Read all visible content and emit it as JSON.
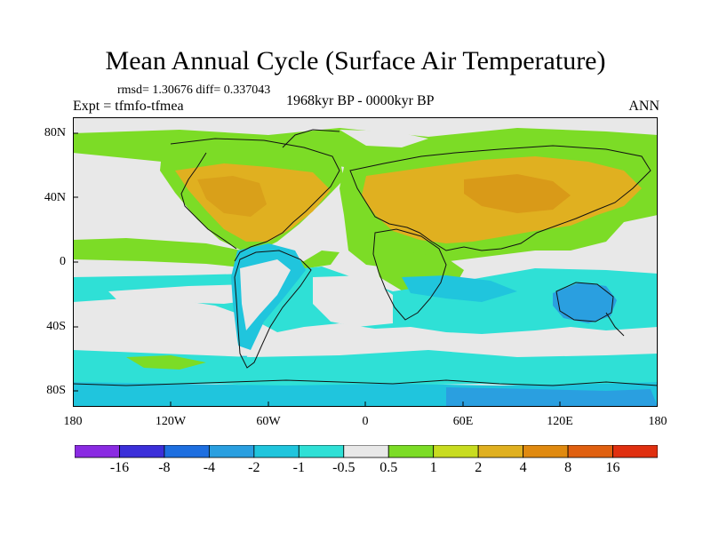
{
  "title": "Mean Annual Cycle (Surface Air Temperature)",
  "stats": "rmsd= 1.30676 diff= 0.337043",
  "experiment": "Expt = tfmfo-tfmea",
  "period": "1968kyr BP - 0000kyr BP",
  "season": "ANN",
  "lat_labels": [
    "80N",
    "40N",
    "0",
    "40S",
    "80S"
  ],
  "lon_labels": [
    "180",
    "120W",
    "60W",
    "0",
    "60E",
    "120E",
    "180"
  ],
  "colorbar": {
    "labels": [
      "-16",
      "-8",
      "-4",
      "-2",
      "-1",
      "-0.5",
      "0.5",
      "1",
      "2",
      "4",
      "8",
      "16"
    ],
    "colors": [
      "#8a2be2",
      "#3b2fd9",
      "#1e6fe0",
      "#2a9fe0",
      "#20c5dd",
      "#2fe0d6",
      "#e8e8e8",
      "#7cdc26",
      "#c8dc20",
      "#e0b020",
      "#e08a10",
      "#e06010",
      "#e03010"
    ]
  },
  "palette": {
    "neutral": "#e8e8e8",
    "green": "#7cdc26",
    "yellow": "#c8dc20",
    "orange": "#e0b020",
    "cyan": "#2fe0d6",
    "lightblue": "#20c5dd",
    "blue": "#2a9fe0"
  }
}
